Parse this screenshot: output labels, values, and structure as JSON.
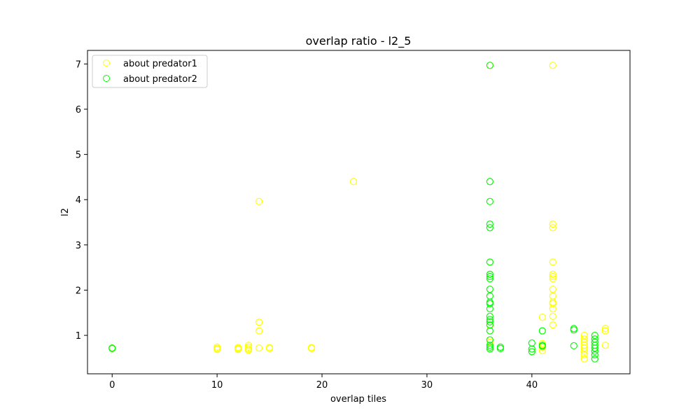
{
  "chart_data": {
    "type": "scatter",
    "title": "overlap ratio - l2_5",
    "xlabel": "overlap tiles",
    "ylabel": "l2",
    "xlim": [
      -2.35,
      49.35
    ],
    "ylim": [
      0.15,
      7.3
    ],
    "xticks": [
      0,
      10,
      20,
      30,
      40
    ],
    "yticks": [
      1,
      2,
      3,
      4,
      5,
      6,
      7
    ],
    "grid": false,
    "legend_position": "top-left",
    "marker": "hollow-circle",
    "series": [
      {
        "name": "about predator1",
        "color": "#ffff00",
        "points": [
          [
            0,
            0.72
          ],
          [
            0,
            0.71
          ],
          [
            10,
            0.71
          ],
          [
            10,
            0.74
          ],
          [
            10,
            0.69
          ],
          [
            12,
            0.71
          ],
          [
            12,
            0.73
          ],
          [
            12,
            0.69
          ],
          [
            13,
            0.7
          ],
          [
            13,
            0.74
          ],
          [
            13,
            0.78
          ],
          [
            13,
            0.67
          ],
          [
            14,
            3.96
          ],
          [
            14,
            1.29
          ],
          [
            14,
            1.1
          ],
          [
            14,
            0.72
          ],
          [
            15,
            0.71
          ],
          [
            15,
            0.73
          ],
          [
            19,
            0.71
          ],
          [
            19,
            0.73
          ],
          [
            23,
            4.4
          ],
          [
            36,
            6.97
          ],
          [
            36,
            1.22
          ],
          [
            36,
            0.85
          ],
          [
            41,
            1.4
          ],
          [
            41,
            0.82
          ],
          [
            41,
            0.74
          ],
          [
            41,
            0.66
          ],
          [
            42,
            6.97
          ],
          [
            42,
            3.46
          ],
          [
            42,
            3.38
          ],
          [
            42,
            2.62
          ],
          [
            42,
            2.35
          ],
          [
            42,
            2.3
          ],
          [
            42,
            2.25
          ],
          [
            42,
            2.02
          ],
          [
            42,
            1.87
          ],
          [
            42,
            1.73
          ],
          [
            42,
            1.7
          ],
          [
            42,
            1.59
          ],
          [
            42,
            1.42
          ],
          [
            42,
            1.23
          ],
          [
            45,
            1.0
          ],
          [
            45,
            0.92
          ],
          [
            45,
            0.85
          ],
          [
            45,
            0.78
          ],
          [
            45,
            0.72
          ],
          [
            45,
            0.65
          ],
          [
            45,
            0.57
          ],
          [
            45,
            0.48
          ],
          [
            47,
            1.15
          ],
          [
            47,
            1.1
          ],
          [
            47,
            0.78
          ]
        ]
      },
      {
        "name": "about predator2",
        "color": "#00ff00",
        "points": [
          [
            0,
            0.72
          ],
          [
            0,
            0.71
          ],
          [
            36,
            6.97
          ],
          [
            36,
            4.4
          ],
          [
            36,
            3.96
          ],
          [
            36,
            3.46
          ],
          [
            36,
            3.38
          ],
          [
            36,
            2.62
          ],
          [
            36,
            2.35
          ],
          [
            36,
            2.3
          ],
          [
            36,
            2.25
          ],
          [
            36,
            2.02
          ],
          [
            36,
            1.87
          ],
          [
            36,
            1.73
          ],
          [
            36,
            1.7
          ],
          [
            36,
            1.59
          ],
          [
            36,
            1.42
          ],
          [
            36,
            1.35
          ],
          [
            36,
            1.3
          ],
          [
            36,
            1.23
          ],
          [
            36,
            1.1
          ],
          [
            36,
            0.9
          ],
          [
            36,
            0.78
          ],
          [
            36,
            0.74
          ],
          [
            36,
            0.7
          ],
          [
            37,
            0.74
          ],
          [
            37,
            0.71
          ],
          [
            40,
            0.83
          ],
          [
            40,
            0.7
          ],
          [
            40,
            0.64
          ],
          [
            41,
            1.1
          ],
          [
            41,
            0.78
          ],
          [
            41,
            0.76
          ],
          [
            44,
            1.15
          ],
          [
            44,
            1.12
          ],
          [
            44,
            0.77
          ],
          [
            46,
            1.0
          ],
          [
            46,
            0.92
          ],
          [
            46,
            0.85
          ],
          [
            46,
            0.78
          ],
          [
            46,
            0.72
          ],
          [
            46,
            0.65
          ],
          [
            46,
            0.57
          ],
          [
            46,
            0.48
          ]
        ]
      }
    ]
  }
}
